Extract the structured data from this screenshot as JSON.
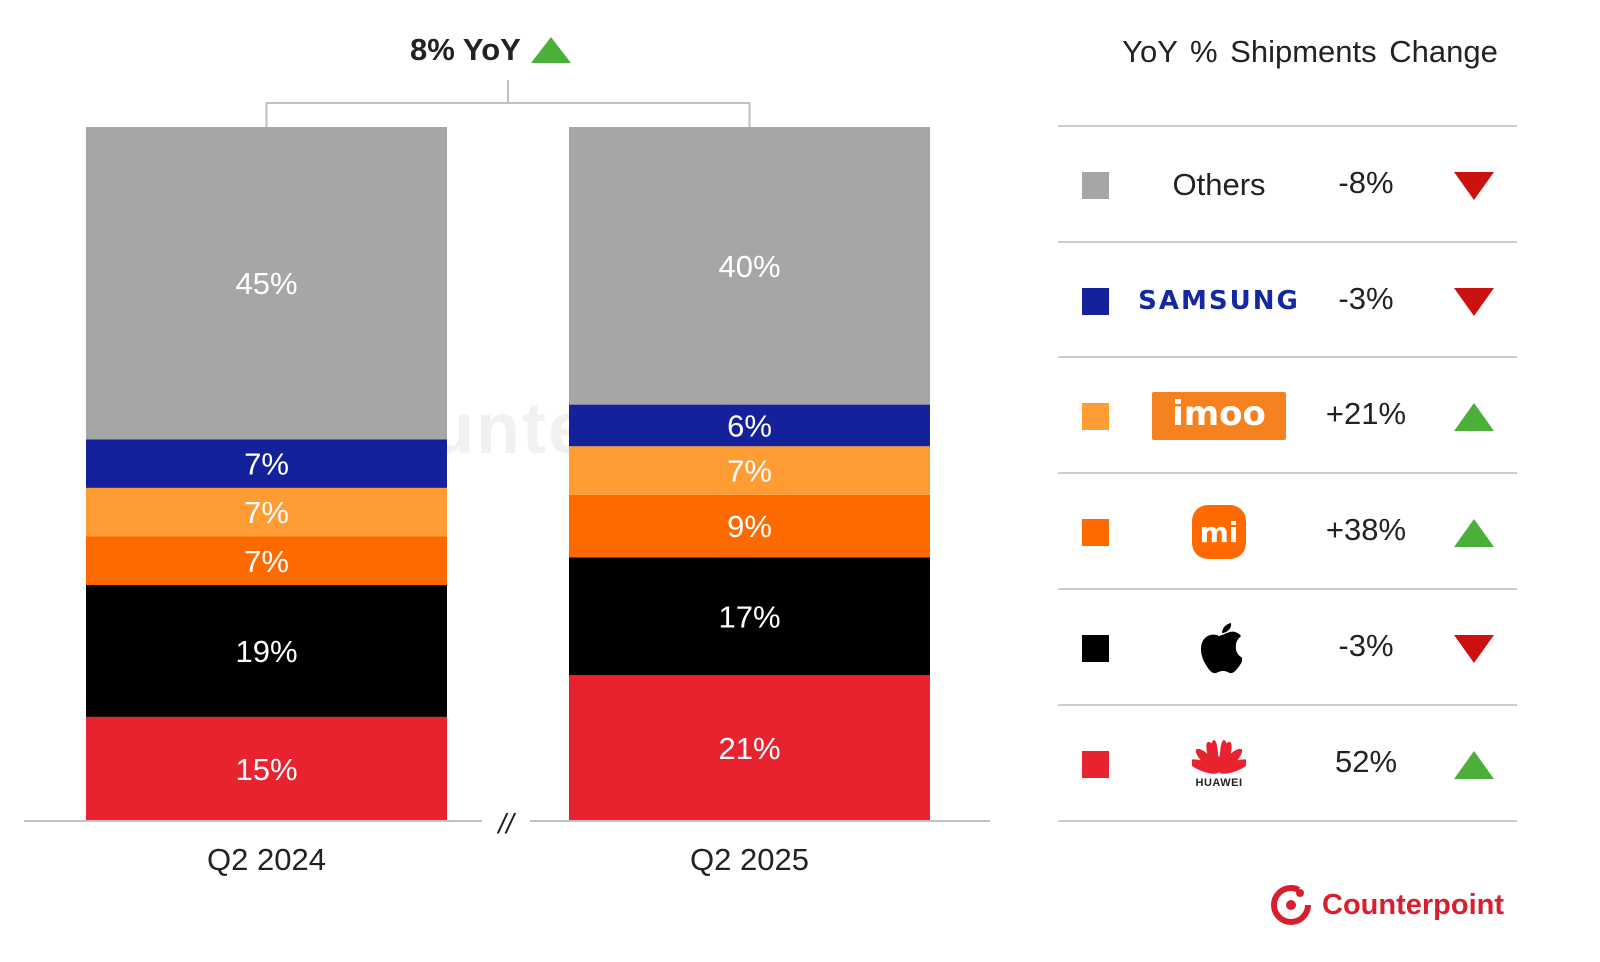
{
  "chart_data": {
    "type": "bar",
    "stacked": true,
    "normalized": true,
    "categories": [
      "Q2 2024",
      "Q2 2025"
    ],
    "series": [
      {
        "name": "Huawei",
        "color": "#e8232f",
        "values": [
          15,
          21
        ]
      },
      {
        "name": "Apple",
        "color": "#000000",
        "values": [
          19,
          17
        ]
      },
      {
        "name": "Xiaomi",
        "color": "#ff6a00",
        "values": [
          7,
          9
        ]
      },
      {
        "name": "imoo",
        "color": "#ff9c33",
        "values": [
          7,
          7
        ]
      },
      {
        "name": "Samsung",
        "color": "#13219a",
        "values": [
          7,
          6
        ]
      },
      {
        "name": "Others",
        "color": "#a6a6a6",
        "values": [
          45,
          40
        ]
      }
    ],
    "data_labels": [
      [
        "15%",
        "19%",
        "7%",
        "7%",
        "7%",
        "45%"
      ],
      [
        "21%",
        "17%",
        "9%",
        "7%",
        "6%",
        "40%"
      ]
    ],
    "ylim": [
      0,
      100
    ],
    "axis_break_label": "//",
    "yoy_total": {
      "label": "8% YoY",
      "direction": "up"
    },
    "legend": {
      "title": "YoY % Shipments Change",
      "placement": "right",
      "rows": [
        {
          "brand": "Others",
          "brand_text": "Others",
          "change": "-8%",
          "direction": "down",
          "color": "#a6a6a6"
        },
        {
          "brand": "Samsung",
          "brand_text": "SAMSUNG",
          "change": "-3%",
          "direction": "down",
          "color": "#13219a"
        },
        {
          "brand": "imoo",
          "brand_text": "imoo",
          "change": "+21%",
          "direction": "up",
          "color": "#ff9c33"
        },
        {
          "brand": "Xiaomi",
          "brand_text": "mi",
          "change": "+38%",
          "direction": "up",
          "color": "#ff6a00"
        },
        {
          "brand": "Apple",
          "brand_text": "",
          "change": "-3%",
          "direction": "down",
          "color": "#000000"
        },
        {
          "brand": "Huawei",
          "brand_text": "HUAWEI",
          "change": "52%",
          "direction": "up",
          "color": "#e8232f"
        }
      ]
    }
  },
  "branding": {
    "logo_text": "Counterpoint",
    "watermark_text": "Counterpoint",
    "logo_color": "#d91e2e"
  },
  "colors": {
    "up": "#4caf3a",
    "down": "#cc1111",
    "grid": "#cccccc"
  }
}
